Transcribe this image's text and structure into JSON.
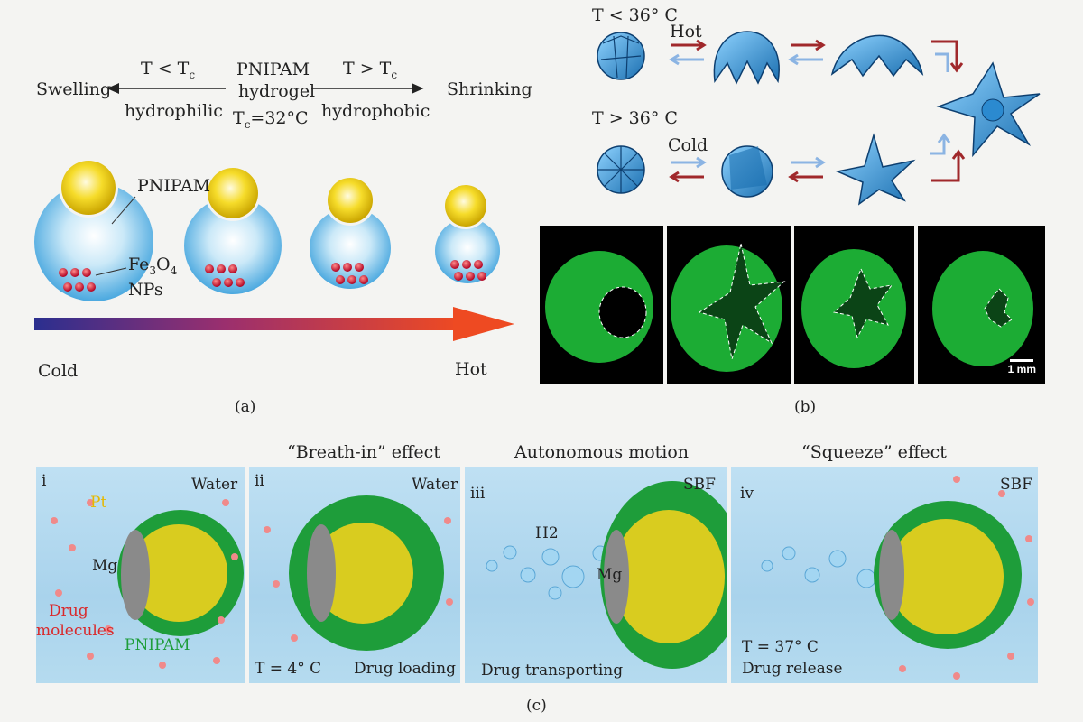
{
  "panel_a": {
    "center_line1": "PNIPAM",
    "center_line2": "hydrogel",
    "center_tc": "T",
    "center_tc_sub": "c",
    "center_tc_val": "=32°C",
    "left_cond": "T < T",
    "left_cond_sub": "c",
    "left_prop": "hydrophilic",
    "left_result": "Swelling",
    "right_cond": "T > T",
    "right_cond_sub": "c",
    "right_prop": "hydrophobic",
    "right_result": "Shrinking",
    "pnipam_label": "PNIPAM",
    "np_label_1": "Fe",
    "np_label_sub1": "3",
    "np_label_2": "O",
    "np_label_sub2": "4",
    "np_label_3": "NPs",
    "cold_label": "Cold",
    "hot_label": "Hot",
    "caption": "(a)"
  },
  "panel_b": {
    "top_cond": "T < 36° C",
    "top_arrow_label": "Hot",
    "bottom_cond": "T > 36° C",
    "bottom_arrow_label": "Cold",
    "scale_label": "1 mm",
    "caption": "(b)"
  },
  "panel_c": {
    "header_ii": "“Breath-in” effect",
    "header_iii": "Autonomous motion",
    "header_iv": "“Squeeze” effect",
    "i": {
      "num": "i",
      "medium": "Water",
      "pt": "Pt",
      "mg": "Mg",
      "drug1": "Drug",
      "drug2": "molecules",
      "pnipam": "PNIPAM"
    },
    "ii": {
      "num": "ii",
      "medium": "Water",
      "temp": "T = 4° C",
      "action": "Drug loading"
    },
    "iii": {
      "num": "iii",
      "medium": "SBF",
      "gas": "H2",
      "mg": "Mg",
      "action": "Drug transporting"
    },
    "iv": {
      "num": "iv",
      "medium": "SBF",
      "temp": "T = 37° C",
      "action": "Drug release"
    },
    "caption": "(c)"
  },
  "colors": {
    "hydrogel_blue": "#7cc6ec",
    "gold_core": "#f2d21a",
    "nanoparticle_red": "#c8102e",
    "cold": "#2b2f8f",
    "hot": "#ee4a22",
    "fluorescence_green": "#1fbf3a",
    "pnipam_green": "#1e9d3a"
  }
}
